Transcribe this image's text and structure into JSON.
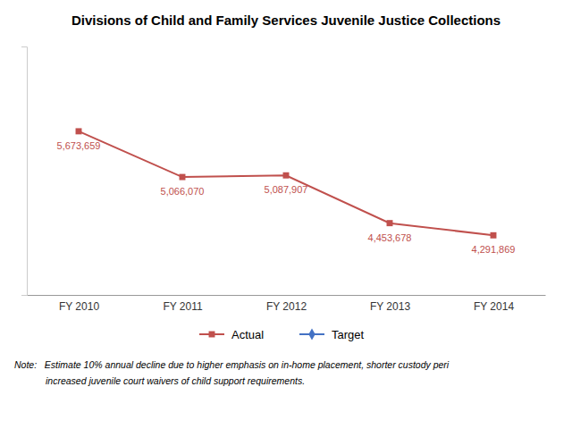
{
  "chart_data": {
    "type": "line",
    "title": "Divisions of Child and Family Services Juvenile Justice Collections",
    "categories": [
      "FY 2010",
      "FY 2011",
      "FY 2012",
      "FY 2013",
      "FY 2014"
    ],
    "series": [
      {
        "name": "Actual",
        "color": "#C0504D",
        "marker": "square",
        "values": [
          5673659,
          5066070,
          5087907,
          4453678,
          4291869
        ],
        "value_labels": [
          "5,673,659",
          "5,066,070",
          "5,087,907",
          "4,453,678",
          "4,291,869"
        ]
      },
      {
        "name": "Target",
        "color": "#4472C4",
        "marker": "diamond",
        "values": [
          null,
          null,
          null,
          null,
          null
        ]
      }
    ],
    "ylim": [
      3500000,
      6800000
    ],
    "data_labels": true,
    "tick_labels": "x",
    "grid": false,
    "legend": "bottom",
    "annotations": [
      "Note:   Estimate 10% annual decline due to higher emphasis on in-home placement, shorter custody peri",
      "            increased juvenile court waivers of child support requirements."
    ]
  }
}
